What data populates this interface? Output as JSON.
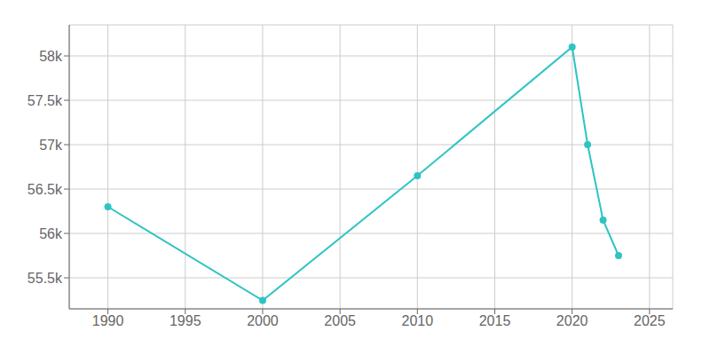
{
  "chart_data": {
    "type": "line",
    "x": [
      1990,
      2000,
      2010,
      2020,
      2021,
      2022,
      2023
    ],
    "values": [
      56300,
      55245,
      56650,
      58100,
      57000,
      56150,
      55750
    ],
    "color": "#2EC4C4",
    "marker": "circle",
    "xlim": [
      1987.5,
      2026.5
    ],
    "ylim": [
      55150,
      58350
    ],
    "xticks": [
      1990,
      1995,
      2000,
      2005,
      2010,
      2015,
      2020,
      2025
    ],
    "yticks": [
      {
        "value": 55500,
        "label": "55.5k"
      },
      {
        "value": 56000,
        "label": "56k"
      },
      {
        "value": 56500,
        "label": "56.5k"
      },
      {
        "value": 57000,
        "label": "57k"
      },
      {
        "value": 57500,
        "label": "57.5k"
      },
      {
        "value": 58000,
        "label": "58k"
      }
    ],
    "grid": true
  }
}
